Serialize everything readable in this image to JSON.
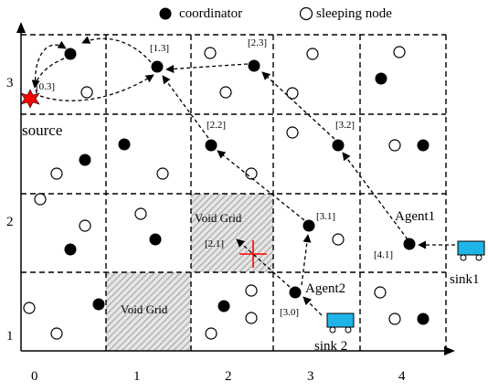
{
  "legend": {
    "coordinator_label": "coordinator",
    "sleeping_label": "sleeping node"
  },
  "x_ticks": [
    "0",
    "1",
    "2",
    "3",
    "4"
  ],
  "y_ticks": [
    "3",
    "2",
    "1"
  ],
  "labels": {
    "source": "source",
    "void_grid_1": "Void Grid",
    "void_grid_2": "Void Grid",
    "agent1": "Agent1",
    "agent2": "Agent2",
    "sink1": "sink1",
    "sink2": "sink 2"
  },
  "cell_labels": {
    "c03": "[0.3]",
    "c13": "[1.3]",
    "c23": "[2.3]",
    "c22": "[2.2]",
    "c32": "[3.2]",
    "c31": "[3.1]",
    "c21": "[2.1]",
    "c41": "[4.1]",
    "c30": "[3.0]"
  },
  "colors": {
    "grid": "#000000",
    "coordinator": "#000000",
    "source_star": "#ff0000",
    "destination_cross": "#ff0000",
    "sink": "#1fb4e8",
    "void_hatch": "#b0b0b0"
  }
}
